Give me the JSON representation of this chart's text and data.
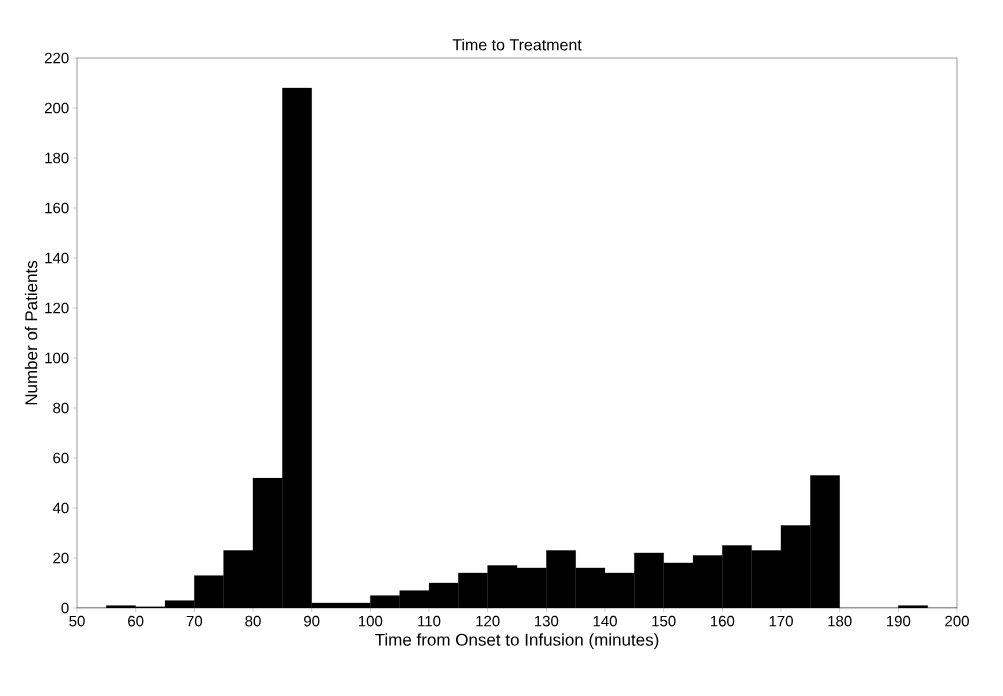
{
  "chart_data": {
    "type": "histogram",
    "title": "Time to Treatment",
    "xlabel": "Time from Onset to Infusion (minutes)",
    "ylabel": "Number of Patients",
    "bins": [
      50,
      55,
      60,
      65,
      70,
      75,
      80,
      85,
      90,
      95,
      100,
      105,
      110,
      115,
      120,
      125,
      130,
      135,
      140,
      145,
      150,
      155,
      160,
      165,
      170,
      175,
      180,
      185,
      190,
      195,
      200
    ],
    "values": [
      0,
      1,
      0.5,
      3,
      13,
      23,
      52,
      208,
      2,
      2,
      5,
      7,
      10,
      14,
      17,
      16,
      23,
      16,
      14,
      22,
      18,
      21,
      25,
      23,
      33,
      53,
      0,
      0,
      1,
      0
    ],
    "color": "#000000",
    "xlim": [
      50,
      200
    ],
    "ylim": [
      0,
      220
    ],
    "xticks": [
      50,
      60,
      70,
      80,
      90,
      100,
      110,
      120,
      130,
      140,
      150,
      160,
      170,
      180,
      190,
      200
    ],
    "yticks": [
      0,
      20,
      40,
      60,
      80,
      100,
      120,
      140,
      160,
      180,
      200,
      220
    ]
  }
}
